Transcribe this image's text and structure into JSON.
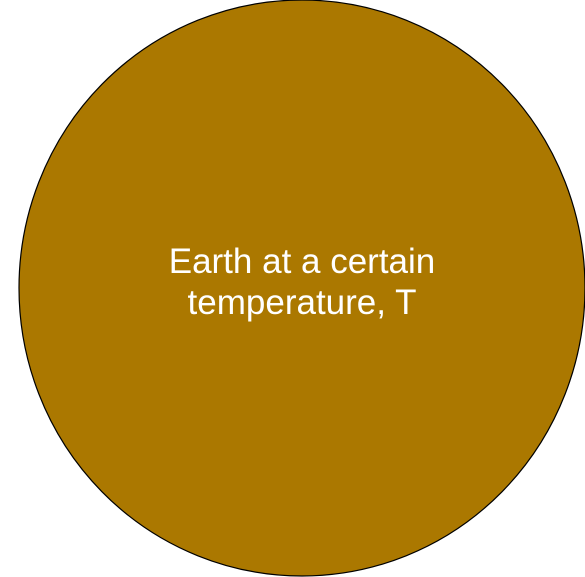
{
  "nodes": [
    {
      "label_lines": [
        "Earth at a certain",
        "temperature, T"
      ]
    }
  ]
}
